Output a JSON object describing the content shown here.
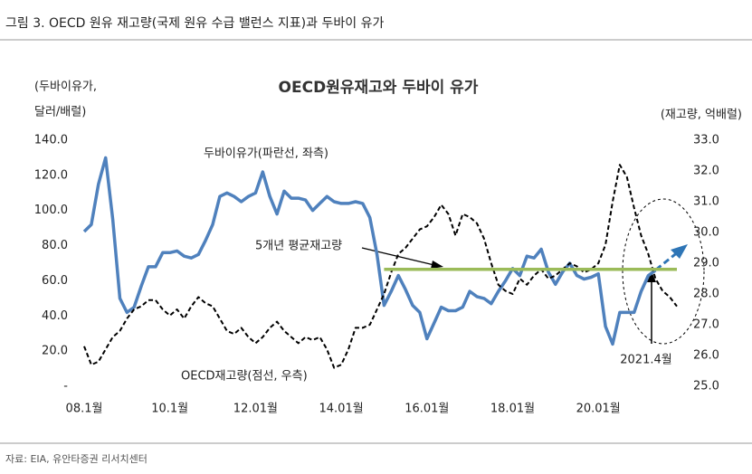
{
  "caption": "그림 3. OECD 원유 재고량(국제 원유 수급 밸런스 지표)과 두바이 유가",
  "source": "자료: EIA, 유안타증권 리서치센터",
  "chart_data": {
    "type": "line",
    "title": "OECD원유재고와 두바이 유가",
    "y_label": [
      "(두바이유가,",
      "달러/배럴)"
    ],
    "y2_label": "(재고량, 억배럴)",
    "categories": [
      "08.1월",
      null,
      null,
      null,
      null,
      null,
      null,
      null,
      null,
      null,
      null,
      null,
      "10.1월",
      null,
      null,
      null,
      null,
      null,
      null,
      null,
      null,
      null,
      null,
      null,
      "12.01월",
      null,
      null,
      null,
      null,
      null,
      null,
      null,
      null,
      null,
      null,
      null,
      "14.01월",
      null,
      null,
      null,
      null,
      null,
      null,
      null,
      null,
      null,
      null,
      null,
      "16.01월",
      null,
      null,
      null,
      null,
      null,
      null,
      null,
      null,
      null,
      null,
      null,
      "18.01월",
      null,
      null,
      null,
      null,
      null,
      null,
      null,
      null,
      null,
      null,
      null,
      "20.01월",
      null,
      null,
      null,
      null,
      null,
      null,
      null,
      null,
      null,
      null,
      null
    ],
    "series": [
      {
        "name": "두바이유가(파란선, 좌측)",
        "color": "#4f81bd",
        "dash": false,
        "values": [
          88,
          92,
          115,
          130,
          95,
          50,
          42,
          45,
          57,
          68,
          68,
          76,
          76,
          77,
          74,
          73,
          75,
          83,
          92,
          108,
          110,
          108,
          105,
          108,
          110,
          122,
          108,
          98,
          111,
          107,
          107,
          106,
          100,
          104,
          108,
          105,
          104,
          104,
          105,
          104,
          96,
          75,
          46,
          54,
          63,
          55,
          46,
          42,
          27,
          36,
          45,
          43,
          43,
          45,
          54,
          51,
          50,
          47,
          54,
          60,
          67,
          63,
          74,
          73,
          78,
          65,
          58,
          65,
          70,
          63,
          61,
          62,
          64,
          34,
          24,
          42,
          42,
          42,
          54,
          63,
          66,
          null,
          null,
          null
        ]
      },
      {
        "name": "OECD재고량(점선, 우측)",
        "color": "#000000",
        "dash": true,
        "axis": "y2",
        "values": [
          26.3,
          25.7,
          25.8,
          26.2,
          26.6,
          26.8,
          27.2,
          27.5,
          27.6,
          27.8,
          27.8,
          27.5,
          27.3,
          27.5,
          27.2,
          27.6,
          27.9,
          27.7,
          27.6,
          27.2,
          26.8,
          26.7,
          26.9,
          26.6,
          26.4,
          26.6,
          26.9,
          27.1,
          26.8,
          26.6,
          26.4,
          26.6,
          26.5,
          26.6,
          26.2,
          25.6,
          25.7,
          26.2,
          26.9,
          26.9,
          27.0,
          27.5,
          28.0,
          28.7,
          29.3,
          29.5,
          29.8,
          30.1,
          30.2,
          30.5,
          30.9,
          30.6,
          29.9,
          30.6,
          30.5,
          30.3,
          29.8,
          29.0,
          28.3,
          28.1,
          28.0,
          28.5,
          28.3,
          28.6,
          28.8,
          28.5,
          28.6,
          28.8,
          29.0,
          28.9,
          28.7,
          28.8,
          29.0,
          29.6,
          31.0,
          32.2,
          31.8,
          30.8,
          29.9,
          29.3,
          28.5,
          28.1,
          27.9,
          27.6
        ]
      },
      {
        "name": "5개년 평균재고량",
        "color": "#9bbb59",
        "dash": false,
        "axis": "y2",
        "values": [
          null,
          null,
          null,
          null,
          null,
          null,
          null,
          null,
          null,
          null,
          null,
          null,
          null,
          null,
          null,
          null,
          null,
          null,
          null,
          null,
          null,
          null,
          null,
          null,
          null,
          null,
          null,
          null,
          null,
          null,
          null,
          null,
          null,
          null,
          null,
          null,
          null,
          null,
          null,
          null,
          null,
          null,
          28.8,
          28.8,
          28.8,
          28.8,
          28.8,
          28.8,
          28.8,
          28.8,
          28.8,
          28.8,
          28.8,
          28.8,
          28.8,
          28.8,
          28.8,
          28.8,
          28.8,
          28.8,
          28.8,
          28.8,
          28.8,
          28.8,
          28.8,
          28.8,
          28.8,
          28.8,
          28.8,
          28.8,
          28.8,
          28.8,
          28.8,
          28.8,
          28.8,
          28.8,
          28.8,
          28.8,
          28.8,
          28.8,
          28.8,
          28.8,
          28.8,
          28.8
        ]
      }
    ],
    "ylim": [
      0,
      140
    ],
    "yticks": [
      {
        "value": 0,
        "label": "-"
      },
      {
        "value": 20,
        "label": "20.0"
      },
      {
        "value": 40,
        "label": "40.0"
      },
      {
        "value": 60,
        "label": "60.0"
      },
      {
        "value": 80,
        "label": "80.0"
      },
      {
        "value": 100,
        "label": "100.0"
      },
      {
        "value": 120,
        "label": "120.0"
      },
      {
        "value": 140,
        "label": "140.0"
      }
    ],
    "y2lim": [
      25,
      33
    ],
    "y2ticks": [
      {
        "value": 25,
        "label": "25.0"
      },
      {
        "value": 26,
        "label": "26.0"
      },
      {
        "value": 27,
        "label": "27.0"
      },
      {
        "value": 28,
        "label": "28.0"
      },
      {
        "value": 29,
        "label": "29.0"
      },
      {
        "value": 30,
        "label": "30.0"
      },
      {
        "value": 31,
        "label": "31.0"
      },
      {
        "value": 32,
        "label": "32.0"
      },
      {
        "value": 33,
        "label": "33.0"
      }
    ],
    "annotations": [
      "2021.4월"
    ],
    "grid": false
  }
}
